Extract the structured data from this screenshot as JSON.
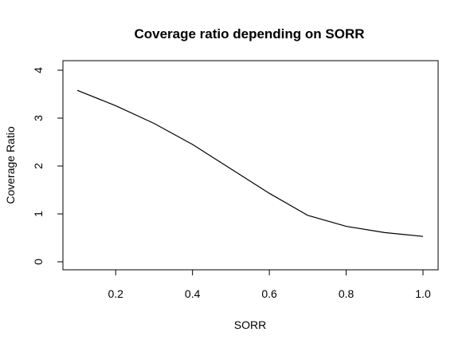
{
  "chart_data": {
    "type": "line",
    "title": "Coverage ratio depending on SORR",
    "xlabel": "SORR",
    "ylabel": "Coverage Ratio",
    "xlim": [
      0.1,
      1.0
    ],
    "ylim": [
      0,
      4
    ],
    "x_ticks": [
      0.2,
      0.4,
      0.6,
      0.8,
      1.0
    ],
    "x_tick_labels": [
      "0.2",
      "0.4",
      "0.6",
      "0.8",
      "1.0"
    ],
    "y_ticks": [
      0,
      1,
      2,
      3,
      4
    ],
    "y_tick_labels": [
      "0",
      "1",
      "2",
      "3",
      "4"
    ],
    "grid": false,
    "line_color": "#000000",
    "series": [
      {
        "x": [
          0.1,
          0.2,
          0.3,
          0.4,
          0.5,
          0.6,
          0.7,
          0.8,
          0.9,
          1.0
        ],
        "values": [
          3.58,
          3.26,
          2.89,
          2.45,
          1.94,
          1.43,
          0.97,
          0.74,
          0.61,
          0.53
        ]
      }
    ]
  }
}
